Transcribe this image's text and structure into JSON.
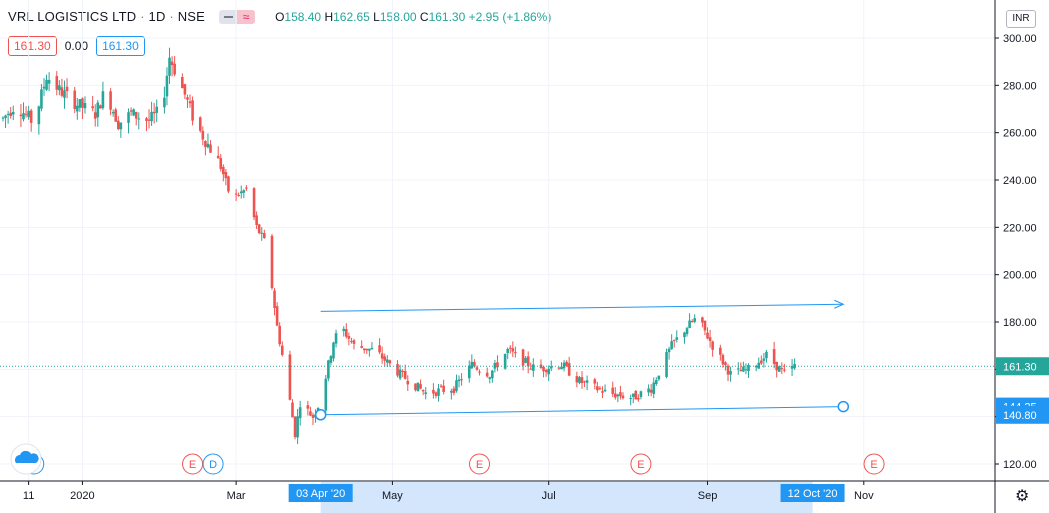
{
  "header": {
    "symbol": "VRL LOGISTICS LTD",
    "interval": "1D",
    "exchange": "NSE",
    "ohlc": {
      "o_label": "O",
      "o": "158.40",
      "h_label": "H",
      "h": "162.65",
      "l_label": "L",
      "l": "158.00",
      "c_label": "C",
      "c": "161.30",
      "change": "+2.95 (+1.86%)"
    },
    "bid": "161.30",
    "spread": "0.00",
    "ask": "161.30"
  },
  "currency": "INR",
  "colors": {
    "up": "#26a69a",
    "down": "#ef5350",
    "line": "#2196f3",
    "axis": "#131722",
    "grid": "#f0f3fa"
  },
  "chart_data": {
    "type": "candlestick",
    "y_ticks": [
      "300.00",
      "280.00",
      "260.00",
      "240.00",
      "220.00",
      "200.00",
      "180.00",
      "160.00",
      "140.00",
      "120.00"
    ],
    "ylim": [
      114,
      306
    ],
    "x_ticks": [
      "11",
      "2020",
      "Mar",
      "May",
      "Jul",
      "Sep",
      "Nov"
    ],
    "last_price": "161.30",
    "price_labels": [
      "144.25",
      "140.80"
    ],
    "range_labels": [
      "03 Apr '20",
      "12 Oct '20"
    ],
    "events": [
      {
        "type": "D",
        "x": "Dec 13"
      },
      {
        "type": "E",
        "x": "Feb 13"
      },
      {
        "type": "D",
        "x": "Feb 21"
      },
      {
        "type": "E",
        "x": "Jun 04"
      },
      {
        "type": "E",
        "x": "Aug 06"
      },
      {
        "type": "E",
        "x": "Nov 05"
      }
    ],
    "anchors": [
      {
        "x": "Dec 01",
        "close": 266
      },
      {
        "x": "Dec 06",
        "close": 272
      },
      {
        "x": "Dec 13",
        "close": 264
      },
      {
        "x": "Dec 18",
        "close": 284
      },
      {
        "x": "Dec 23",
        "close": 278
      },
      {
        "x": "Dec 30",
        "close": 272
      },
      {
        "x": "Jan 06",
        "close": 268
      },
      {
        "x": "Jan 10",
        "close": 278
      },
      {
        "x": "Jan 15",
        "close": 264
      },
      {
        "x": "Jan 20",
        "close": 268
      },
      {
        "x": "Jan 27",
        "close": 265
      },
      {
        "x": "Feb 01",
        "close": 270
      },
      {
        "x": "Feb 04",
        "close": 292
      },
      {
        "x": "Feb 07",
        "close": 284
      },
      {
        "x": "Feb 10",
        "close": 276
      },
      {
        "x": "Feb 14",
        "close": 264
      },
      {
        "x": "Feb 19",
        "close": 255
      },
      {
        "x": "Feb 24",
        "close": 246
      },
      {
        "x": "Feb 28",
        "close": 232
      },
      {
        "x": "Mar 05",
        "close": 236
      },
      {
        "x": "Mar 09",
        "close": 220
      },
      {
        "x": "Mar 13",
        "close": 212
      },
      {
        "x": "Mar 17",
        "close": 178
      },
      {
        "x": "Mar 20",
        "close": 160
      },
      {
        "x": "Mar 24",
        "close": 133
      },
      {
        "x": "Mar 26",
        "close": 146
      },
      {
        "x": "Mar 31",
        "close": 140
      },
      {
        "x": "Apr 03",
        "close": 147
      },
      {
        "x": "Apr 08",
        "close": 172
      },
      {
        "x": "Apr 11",
        "close": 178
      },
      {
        "x": "Apr 16",
        "close": 170
      },
      {
        "x": "Apr 24",
        "close": 168
      },
      {
        "x": "May 04",
        "close": 158
      },
      {
        "x": "May 14",
        "close": 150
      },
      {
        "x": "May 25",
        "close": 152
      },
      {
        "x": "Jun 01",
        "close": 162
      },
      {
        "x": "Jun 08",
        "close": 158
      },
      {
        "x": "Jun 15",
        "close": 168
      },
      {
        "x": "Jun 19",
        "close": 165
      },
      {
        "x": "Jun 26",
        "close": 160
      },
      {
        "x": "Jul 06",
        "close": 162
      },
      {
        "x": "Jul 13",
        "close": 155
      },
      {
        "x": "Jul 24",
        "close": 150
      },
      {
        "x": "Aug 03",
        "close": 148
      },
      {
        "x": "Aug 10",
        "close": 152
      },
      {
        "x": "Aug 18",
        "close": 170
      },
      {
        "x": "Aug 24",
        "close": 178
      },
      {
        "x": "Aug 28",
        "close": 182
      },
      {
        "x": "Sep 03",
        "close": 170
      },
      {
        "x": "Sep 10",
        "close": 158
      },
      {
        "x": "Sep 17",
        "close": 160
      },
      {
        "x": "Sep 24",
        "close": 166
      },
      {
        "x": "Oct 01",
        "close": 158
      },
      {
        "x": "Oct 05",
        "close": 161.3
      }
    ],
    "trendlines": [
      {
        "name": "upper-channel",
        "from": {
          "x": "Apr 03",
          "y": 184.5
        },
        "to": {
          "x": "Oct 24",
          "y": 187.5
        },
        "arrow": true
      },
      {
        "name": "lower-channel",
        "from": {
          "x": "Apr 03",
          "y": 140.8
        },
        "to": {
          "x": "Oct 24",
          "y": 144.25
        },
        "arrow": false
      }
    ]
  }
}
